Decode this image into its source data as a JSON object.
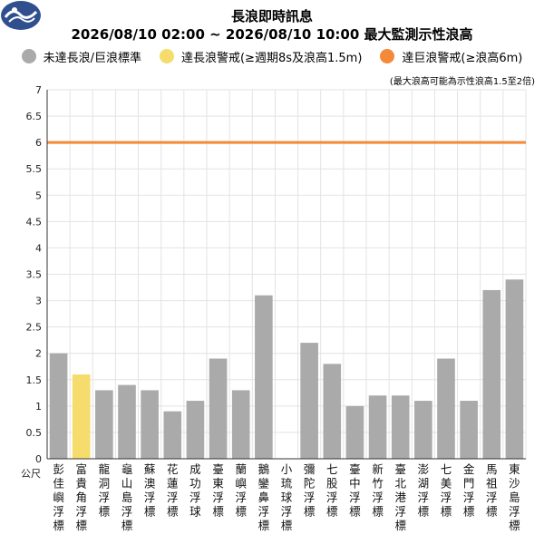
{
  "chart_data": {
    "type": "bar",
    "title": "長浪即時訊息",
    "subtitle": "2026/08/10 02:00 ~ 2026/08/10 10:00 最大監測示性浪高",
    "note": "(最大浪高可能為示性浪高1.5至2倍)",
    "ylabel": "公尺",
    "ylim": [
      0,
      7
    ],
    "yticks": [
      0,
      0.5,
      1,
      1.5,
      2,
      2.5,
      3,
      3.5,
      4,
      4.5,
      5,
      5.5,
      6,
      6.5,
      7
    ],
    "grid": true,
    "legend_position": "top",
    "legend": [
      {
        "label": "未達長浪/巨浪標準",
        "color": "#aaaaaa"
      },
      {
        "label": "達長浪警戒(≥週期8s及浪高1.5m)",
        "color": "#f5dc6c"
      },
      {
        "label": "達巨浪警戒(≥浪高6m)",
        "color": "#f5893a"
      }
    ],
    "threshold": {
      "value": 6,
      "color": "#f5893a"
    },
    "categories": [
      "彭佳嶼浮標",
      "富貴角浮標",
      "龍洞浮標",
      "龜山島浮標",
      "蘇澳浮標",
      "花蓮浮標",
      "成功浮球",
      "臺東浮標",
      "蘭嶼浮標",
      "鵝鑾鼻浮標",
      "小琉球浮標",
      "彌陀浮標",
      "七股浮標",
      "臺中浮標",
      "新竹浮標",
      "臺北港浮標",
      "澎湖浮標",
      "七美浮標",
      "金門浮標",
      "馬祖浮標",
      "東沙島浮標"
    ],
    "values": [
      2.0,
      1.6,
      1.3,
      1.4,
      1.3,
      0.9,
      1.1,
      1.9,
      1.3,
      3.1,
      null,
      2.2,
      1.8,
      1.0,
      1.2,
      1.2,
      1.1,
      1.9,
      1.1,
      3.2,
      3.4
    ],
    "bar_levels": [
      "none",
      "long",
      "none",
      "none",
      "none",
      "none",
      "none",
      "none",
      "none",
      "none",
      "none",
      "none",
      "none",
      "none",
      "none",
      "none",
      "none",
      "none",
      "none",
      "none",
      "none"
    ],
    "colors": {
      "none": "#aaaaaa",
      "long": "#f5dc6c",
      "giant": "#f5893a",
      "grid": "#e3e3e3",
      "axis": "#333333"
    }
  },
  "logo": {
    "icon": "cwa-logo-icon",
    "color": "#2f4f8f"
  }
}
